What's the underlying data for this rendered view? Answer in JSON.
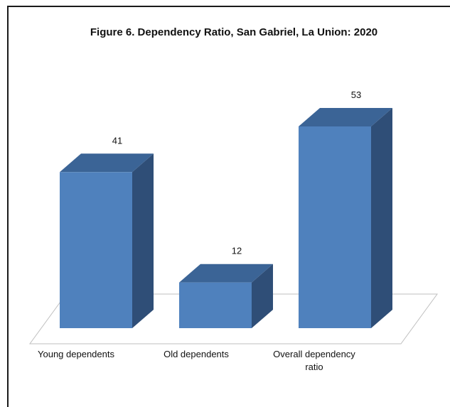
{
  "colors": {
    "bar_front": "#4f81bd",
    "bar_side": "#2f4e77",
    "bar_top": "#3b6496",
    "floor_edge": "#bfbfbf",
    "frame": "#1a1a1a",
    "background": "#ffffff"
  },
  "chart_data": {
    "type": "bar",
    "title": "Figure 6. Dependency Ratio, San Gabriel, La Union: 2020",
    "xlabel": "",
    "ylabel": "",
    "three_d": true,
    "grid": false,
    "legend": "none",
    "categories": [
      [
        "Young dependents"
      ],
      [
        "Old dependents"
      ],
      [
        "Overall dependency",
        "ratio"
      ]
    ],
    "values": [
      41,
      12,
      53
    ],
    "data_labels": [
      "41",
      "12",
      "53"
    ],
    "ylim": [
      0,
      60
    ]
  }
}
